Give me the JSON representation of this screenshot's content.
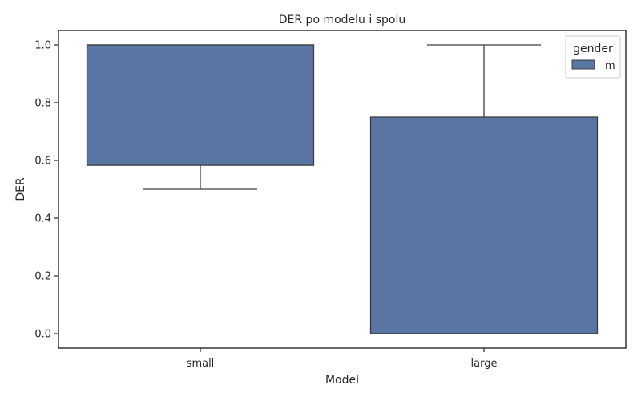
{
  "chart_data": {
    "type": "box",
    "title": "DER po modelu i spolu",
    "xlabel": "Model",
    "ylabel": "DER",
    "categories": [
      "small",
      "large"
    ],
    "ylim": [
      -0.05,
      1.05
    ],
    "yticks": [
      "0.0",
      "0.2",
      "0.4",
      "0.6",
      "0.8",
      "1.0"
    ],
    "legend": {
      "title": "gender",
      "placement": "top-right",
      "entries": [
        "m"
      ]
    },
    "series": [
      {
        "name": "m",
        "color": "#5875a4",
        "boxes": [
          {
            "category": "small",
            "whisker_low": 0.5,
            "q1": 0.583,
            "median": 1.0,
            "q3": 1.0,
            "whisker_high": 1.0
          },
          {
            "category": "large",
            "whisker_low": 0.0,
            "q1": 0.0,
            "median": 0.0,
            "q3": 0.75,
            "whisker_high": 1.0
          }
        ]
      }
    ],
    "grid": false
  }
}
